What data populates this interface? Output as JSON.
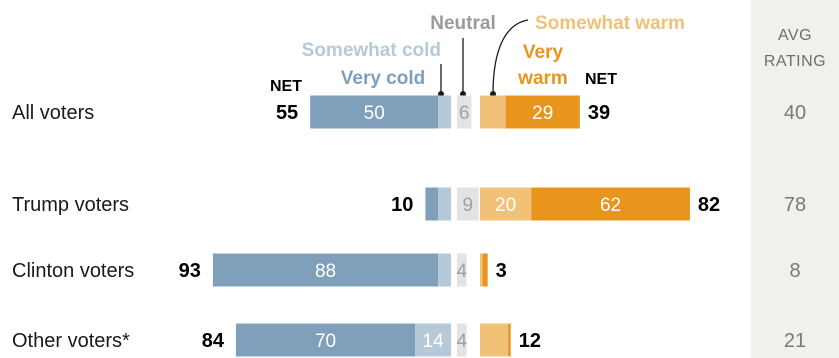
{
  "chart_data": {
    "type": "bar",
    "subtype": "diverging-stacked",
    "legend": {
      "somewhat_cold": "Somewhat cold",
      "very_cold": "Very cold",
      "neutral": "Neutral",
      "somewhat_warm": "Somewhat warm",
      "very_warm_line1": "Very",
      "very_warm_line2": "warm"
    },
    "net_label": "NET",
    "avg_header": [
      "AVG",
      "RATING"
    ],
    "colors": {
      "very_cold": "#7f9fba",
      "somewhat_cold": "#b6c9d9",
      "neutral": "#e3e3e3",
      "somewhat_warm": "#f1c178",
      "very_warm": "#e8951d",
      "avg_band": "#f1f0ec"
    },
    "rows": [
      {
        "label": "All voters",
        "very_cold": 50,
        "somewhat_cold": 5,
        "neutral": 6,
        "somewhat_warm": 10,
        "very_warm": 29,
        "net_cold": 55,
        "net_warm": 39,
        "avg": 40,
        "very_cold_label": "50",
        "somewhat_cold_label": "",
        "neutral_label": "6",
        "somewhat_warm_label": "",
        "very_warm_label": "29"
      },
      {
        "label": "Trump voters",
        "very_cold": 5,
        "somewhat_cold": 5,
        "neutral": 9,
        "somewhat_warm": 20,
        "very_warm": 62,
        "net_cold": 10,
        "net_warm": 82,
        "avg": 78,
        "very_cold_label": "",
        "somewhat_cold_label": "",
        "neutral_label": "9",
        "somewhat_warm_label": "20",
        "very_warm_label": "62"
      },
      {
        "label": "Clinton voters",
        "very_cold": 88,
        "somewhat_cold": 5,
        "neutral": 4,
        "somewhat_warm": 1,
        "very_warm": 2,
        "net_cold": 93,
        "net_warm": 3,
        "avg": 8,
        "very_cold_label": "88",
        "somewhat_cold_label": "",
        "neutral_label": "4",
        "somewhat_warm_label": "",
        "very_warm_label": ""
      },
      {
        "label": "Other voters*",
        "very_cold": 70,
        "somewhat_cold": 14,
        "neutral": 4,
        "somewhat_warm": 11,
        "very_warm": 1,
        "net_cold": 84,
        "net_warm": 12,
        "avg": 21,
        "very_cold_label": "70",
        "somewhat_cold_label": "14",
        "neutral_label": "4",
        "somewhat_warm_label": "",
        "very_warm_label": ""
      }
    ]
  }
}
